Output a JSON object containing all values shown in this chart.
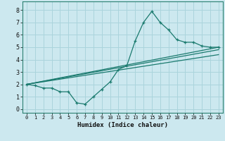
{
  "xlabel": "Humidex (Indice chaleur)",
  "ylabel": "",
  "bg_color": "#cce8ef",
  "grid_color": "#aad4dc",
  "line_color": "#1a7a6e",
  "xlim": [
    -0.5,
    23.5
  ],
  "ylim": [
    -0.3,
    8.7
  ],
  "xticks": [
    0,
    1,
    2,
    3,
    4,
    5,
    6,
    7,
    8,
    9,
    10,
    11,
    12,
    13,
    14,
    15,
    16,
    17,
    18,
    19,
    20,
    21,
    22,
    23
  ],
  "yticks": [
    0,
    1,
    2,
    3,
    4,
    5,
    6,
    7,
    8
  ],
  "zigzag_x": [
    0,
    1,
    2,
    3,
    4,
    5,
    6,
    7,
    8,
    9,
    10,
    11,
    12,
    13,
    14,
    15,
    16,
    17,
    18,
    19,
    20,
    21,
    22,
    23
  ],
  "zigzag_y": [
    2.0,
    1.9,
    1.7,
    1.7,
    1.4,
    1.4,
    0.5,
    0.4,
    1.0,
    1.6,
    2.2,
    3.2,
    3.5,
    5.5,
    7.0,
    7.9,
    7.0,
    6.4,
    5.6,
    5.4,
    5.4,
    5.1,
    5.0,
    5.0
  ],
  "line1_x": [
    0,
    23
  ],
  "line1_y": [
    2.0,
    5.0
  ],
  "line2_x": [
    0,
    23
  ],
  "line2_y": [
    2.0,
    4.8
  ],
  "line3_x": [
    0,
    23
  ],
  "line3_y": [
    2.0,
    4.4
  ]
}
